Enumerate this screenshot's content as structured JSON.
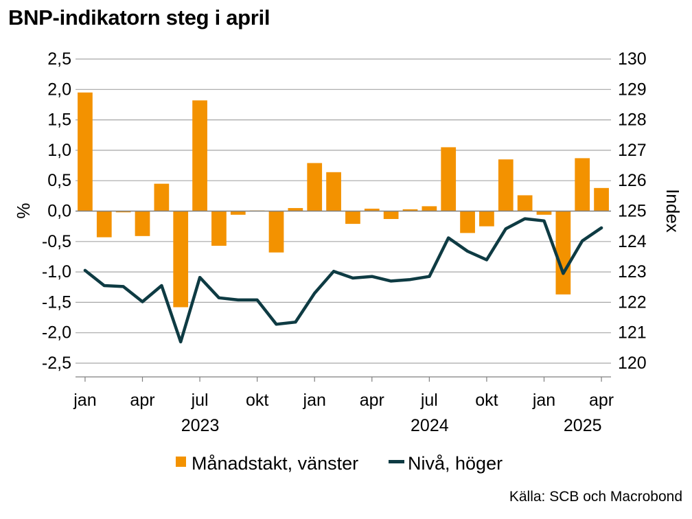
{
  "chart_data": {
    "type": "bar+line",
    "title": "BNP-indikatorn steg i april",
    "source": "Källa: SCB och Macrobond",
    "left_axis": {
      "label": "%",
      "ylim": [
        -2.5,
        2.5
      ],
      "ticks": [
        2.5,
        2.0,
        1.5,
        1.0,
        0.5,
        0.0,
        -0.5,
        -1.0,
        -1.5,
        -2.0,
        -2.5
      ],
      "tick_labels": [
        "2,5",
        "2,0",
        "1,5",
        "1,0",
        "0,5",
        "0,0",
        "-0,5",
        "-1,0",
        "-1,5",
        "-2,0",
        "-2,5"
      ]
    },
    "right_axis": {
      "label": "Index",
      "ylim": [
        120,
        130
      ],
      "ticks": [
        130,
        129,
        128,
        127,
        126,
        125,
        124,
        123,
        122,
        121,
        120
      ],
      "tick_labels": [
        "130",
        "129",
        "128",
        "127",
        "126",
        "125",
        "124",
        "123",
        "122",
        "121",
        "120"
      ]
    },
    "x_tick_labels": [
      {
        "index": 0,
        "label": "jan"
      },
      {
        "index": 3,
        "label": "apr"
      },
      {
        "index": 6,
        "label": "jul"
      },
      {
        "index": 9,
        "label": "okt"
      },
      {
        "index": 12,
        "label": "jan"
      },
      {
        "index": 15,
        "label": "apr"
      },
      {
        "index": 18,
        "label": "jul"
      },
      {
        "index": 21,
        "label": "okt"
      },
      {
        "index": 24,
        "label": "jan"
      },
      {
        "index": 27,
        "label": "apr"
      }
    ],
    "year_labels": [
      {
        "index": 6,
        "label": "2023"
      },
      {
        "index": 18,
        "label": "2024"
      },
      {
        "index": 26,
        "label": "2025"
      }
    ],
    "months": [
      "2023-01",
      "2023-02",
      "2023-03",
      "2023-04",
      "2023-05",
      "2023-06",
      "2023-07",
      "2023-08",
      "2023-09",
      "2023-10",
      "2023-11",
      "2023-12",
      "2024-01",
      "2024-02",
      "2024-03",
      "2024-04",
      "2024-05",
      "2024-06",
      "2024-07",
      "2024-08",
      "2024-09",
      "2024-10",
      "2024-11",
      "2024-12",
      "2025-01",
      "2025-02",
      "2025-03",
      "2025-04"
    ],
    "series": [
      {
        "name": "Månadstakt, vänster",
        "type": "bar",
        "axis": "left",
        "color": "#F39200",
        "values": [
          1.95,
          -0.43,
          -0.02,
          -0.41,
          0.45,
          -1.58,
          1.82,
          -0.57,
          -0.06,
          0.01,
          -0.68,
          0.05,
          0.79,
          0.64,
          -0.21,
          0.04,
          -0.13,
          0.03,
          0.08,
          1.05,
          -0.36,
          -0.25,
          0.85,
          0.26,
          -0.06,
          -1.37,
          0.87,
          0.38
        ]
      },
      {
        "name": "Nivå, höger",
        "type": "line",
        "axis": "right",
        "color": "#0E3B43",
        "values": [
          123.05,
          122.55,
          122.52,
          122.02,
          122.55,
          120.7,
          122.82,
          122.15,
          122.08,
          122.08,
          121.28,
          121.35,
          122.3,
          123.02,
          122.8,
          122.85,
          122.7,
          122.75,
          122.85,
          124.12,
          123.68,
          123.4,
          124.42,
          124.75,
          124.68,
          122.95,
          124.02,
          124.45
        ]
      }
    ],
    "legend": {
      "position": "bottom"
    }
  },
  "colors": {
    "bar": "#F39200",
    "line": "#0E3B43",
    "grid": "#A6A6A6",
    "axis": "#7F7F7F"
  }
}
